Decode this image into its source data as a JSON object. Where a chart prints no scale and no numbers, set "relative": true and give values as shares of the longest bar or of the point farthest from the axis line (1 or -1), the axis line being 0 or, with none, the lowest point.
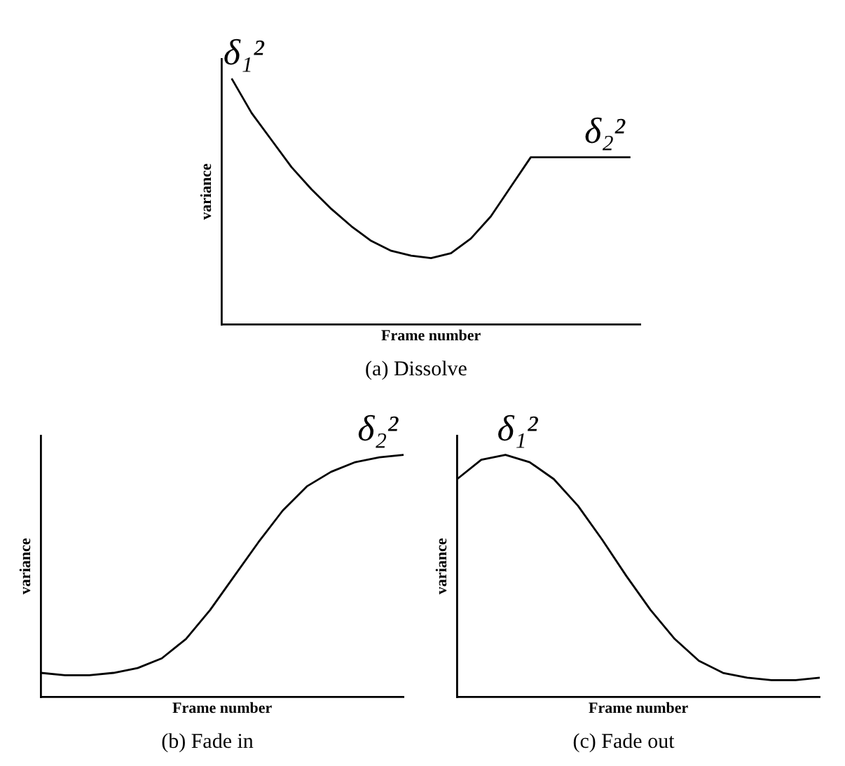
{
  "chart_data": [
    {
      "type": "line",
      "title": "(a) Dissolve",
      "xlabel": "Frame number",
      "ylabel": "variance",
      "relative": true,
      "tick_labels": false,
      "grid": false,
      "legend": false,
      "marker": "none",
      "categories": [
        null,
        null,
        null,
        null,
        null,
        null,
        null,
        null,
        null,
        null,
        null,
        null,
        null,
        null,
        null,
        null,
        null,
        null,
        null,
        null,
        null
      ],
      "series": [
        {
          "color": "#000000",
          "values": [
            1,
            0.86,
            0.75,
            0.64,
            0.55,
            0.47,
            0.4,
            0.34,
            0.3,
            0.28,
            0.27,
            0.29,
            0.35,
            0.44,
            0.56,
            0.68,
            0.68,
            0.68,
            0.68,
            0.68,
            0.68
          ]
        }
      ],
      "annotations": [
        "δ₁²",
        "δ₂²"
      ]
    },
    {
      "type": "line",
      "title": "(b) Fade in",
      "xlabel": "Frame number",
      "ylabel": "variance",
      "relative": true,
      "tick_labels": false,
      "grid": false,
      "legend": false,
      "marker": "none",
      "categories": [
        null,
        null,
        null,
        null,
        null,
        null,
        null,
        null,
        null,
        null,
        null,
        null,
        null,
        null,
        null,
        null
      ],
      "series": [
        {
          "color": "#000000",
          "values": [
            0.1,
            0.09,
            0.09,
            0.1,
            0.12,
            0.16,
            0.24,
            0.36,
            0.5,
            0.64,
            0.77,
            0.87,
            0.93,
            0.97,
            0.99,
            1
          ]
        }
      ],
      "annotations": [
        "δ₂²"
      ]
    },
    {
      "type": "line",
      "title": "(c) Fade out",
      "xlabel": "Frame number",
      "ylabel": "variance",
      "relative": true,
      "tick_labels": false,
      "grid": false,
      "legend": false,
      "marker": "none",
      "categories": [
        null,
        null,
        null,
        null,
        null,
        null,
        null,
        null,
        null,
        null,
        null,
        null,
        null,
        null,
        null,
        null
      ],
      "series": [
        {
          "color": "#000000",
          "values": [
            0.9,
            0.98,
            1,
            0.97,
            0.9,
            0.79,
            0.65,
            0.5,
            0.36,
            0.24,
            0.15,
            0.1,
            0.08,
            0.07,
            0.07,
            0.08
          ]
        }
      ],
      "annotations": [
        "δ₁²"
      ]
    }
  ]
}
